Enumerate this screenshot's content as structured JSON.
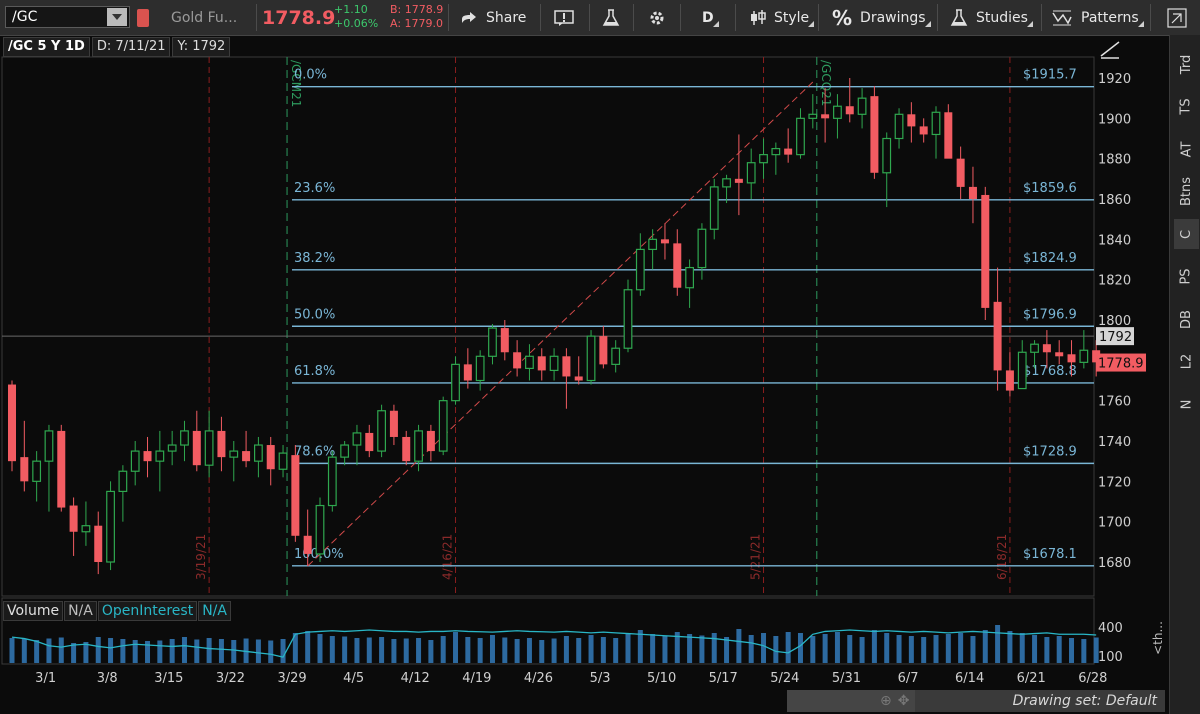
{
  "toolbar": {
    "symbol": "/GC",
    "description": "Gold Fu...",
    "last_price": "1778.9",
    "change": "+1.10",
    "change_pct": "+0.06%",
    "bid": "B: 1778.9",
    "ask": "A: 1779.0",
    "share_label": "Share",
    "aggregation_label": "D",
    "style_label": "Style",
    "drawings_label": "Drawings",
    "studies_label": "Studies",
    "patterns_label": "Patterns"
  },
  "infobar": {
    "symbol_period": "/GC 5 Y 1D",
    "date": "D: 7/11/21",
    "y_value": "Y: 1792"
  },
  "sidebar": {
    "tabs": [
      "Trd",
      "TS",
      "AT",
      "Btns",
      "C",
      "PS",
      "DB",
      "L2",
      "N"
    ]
  },
  "volume_panel": {
    "label_volume": "Volume",
    "label_volume_value": "N/A",
    "label_oi": "OpenInterest",
    "label_oi_value": "N/A",
    "axis_ticks": [
      400,
      100
    ],
    "collapse_label": "<th..."
  },
  "status": {
    "drawing_set": "Drawing set: Default"
  },
  "colors": {
    "up": "#2fa84f",
    "down": "#f25c62",
    "fib": "#7ab6d6",
    "grid": "#8b1e1e",
    "expiry": "#2d9a5e",
    "oi": "#29b6c6",
    "volume": "#2d6aa0"
  },
  "chart_data": {
    "type": "candlestick",
    "y_axis": {
      "ticks": [
        1680,
        1700,
        1720,
        1740,
        1760,
        1780,
        1800,
        1820,
        1840,
        1860,
        1880,
        1900,
        1920
      ],
      "range": [
        1668,
        1926
      ]
    },
    "x_axis": {
      "tick_labels": [
        "3/1",
        "3/8",
        "3/15",
        "3/22",
        "3/29",
        "4/5",
        "4/12",
        "4/19",
        "4/26",
        "5/3",
        "5/10",
        "5/17",
        "5/24",
        "5/31",
        "6/7",
        "6/14",
        "6/21",
        "6/28"
      ],
      "tick_index": [
        2,
        7,
        12,
        17,
        22,
        27,
        32,
        37,
        42,
        47,
        52,
        57,
        62,
        67,
        72,
        77,
        82,
        87
      ]
    },
    "candles": [
      {
        "o": 1768,
        "h": 1770,
        "l": 1725,
        "c": 1730
      },
      {
        "o": 1732,
        "h": 1750,
        "l": 1715,
        "c": 1720
      },
      {
        "o": 1720,
        "h": 1735,
        "l": 1710,
        "c": 1730
      },
      {
        "o": 1730,
        "h": 1748,
        "l": 1705,
        "c": 1745
      },
      {
        "o": 1745,
        "h": 1748,
        "l": 1705,
        "c": 1707
      },
      {
        "o": 1708,
        "h": 1712,
        "l": 1683,
        "c": 1695
      },
      {
        "o": 1695,
        "h": 1710,
        "l": 1688,
        "c": 1698
      },
      {
        "o": 1698,
        "h": 1705,
        "l": 1674,
        "c": 1680
      },
      {
        "o": 1680,
        "h": 1720,
        "l": 1676,
        "c": 1715
      },
      {
        "o": 1715,
        "h": 1728,
        "l": 1700,
        "c": 1725
      },
      {
        "o": 1725,
        "h": 1740,
        "l": 1718,
        "c": 1735
      },
      {
        "o": 1735,
        "h": 1742,
        "l": 1722,
        "c": 1730
      },
      {
        "o": 1730,
        "h": 1745,
        "l": 1715,
        "c": 1735
      },
      {
        "o": 1735,
        "h": 1745,
        "l": 1728,
        "c": 1738
      },
      {
        "o": 1738,
        "h": 1750,
        "l": 1730,
        "c": 1745
      },
      {
        "o": 1745,
        "h": 1755,
        "l": 1725,
        "c": 1728
      },
      {
        "o": 1728,
        "h": 1755,
        "l": 1722,
        "c": 1745
      },
      {
        "o": 1745,
        "h": 1752,
        "l": 1725,
        "c": 1732
      },
      {
        "o": 1732,
        "h": 1740,
        "l": 1720,
        "c": 1735
      },
      {
        "o": 1735,
        "h": 1745,
        "l": 1727,
        "c": 1730
      },
      {
        "o": 1730,
        "h": 1742,
        "l": 1722,
        "c": 1738
      },
      {
        "o": 1738,
        "h": 1742,
        "l": 1718,
        "c": 1726
      },
      {
        "o": 1726,
        "h": 1738,
        "l": 1722,
        "c": 1734
      },
      {
        "o": 1733,
        "h": 1738,
        "l": 1690,
        "c": 1693
      },
      {
        "o": 1693,
        "h": 1706,
        "l": 1678,
        "c": 1684
      },
      {
        "o": 1684,
        "h": 1712,
        "l": 1680,
        "c": 1708
      },
      {
        "o": 1708,
        "h": 1735,
        "l": 1705,
        "c": 1732
      },
      {
        "o": 1732,
        "h": 1740,
        "l": 1728,
        "c": 1738
      },
      {
        "o": 1738,
        "h": 1748,
        "l": 1728,
        "c": 1744
      },
      {
        "o": 1744,
        "h": 1748,
        "l": 1732,
        "c": 1735
      },
      {
        "o": 1735,
        "h": 1758,
        "l": 1732,
        "c": 1755
      },
      {
        "o": 1755,
        "h": 1758,
        "l": 1738,
        "c": 1742
      },
      {
        "o": 1742,
        "h": 1745,
        "l": 1728,
        "c": 1730
      },
      {
        "o": 1730,
        "h": 1748,
        "l": 1725,
        "c": 1745
      },
      {
        "o": 1745,
        "h": 1748,
        "l": 1730,
        "c": 1735
      },
      {
        "o": 1735,
        "h": 1762,
        "l": 1733,
        "c": 1760
      },
      {
        "o": 1760,
        "h": 1782,
        "l": 1758,
        "c": 1778
      },
      {
        "o": 1778,
        "h": 1786,
        "l": 1766,
        "c": 1770
      },
      {
        "o": 1770,
        "h": 1785,
        "l": 1765,
        "c": 1782
      },
      {
        "o": 1782,
        "h": 1798,
        "l": 1778,
        "c": 1796
      },
      {
        "o": 1796,
        "h": 1800,
        "l": 1780,
        "c": 1784
      },
      {
        "o": 1784,
        "h": 1790,
        "l": 1772,
        "c": 1776
      },
      {
        "o": 1776,
        "h": 1788,
        "l": 1770,
        "c": 1782
      },
      {
        "o": 1782,
        "h": 1786,
        "l": 1770,
        "c": 1775
      },
      {
        "o": 1775,
        "h": 1786,
        "l": 1770,
        "c": 1782
      },
      {
        "o": 1782,
        "h": 1786,
        "l": 1756,
        "c": 1772
      },
      {
        "o": 1772,
        "h": 1782,
        "l": 1768,
        "c": 1770
      },
      {
        "o": 1770,
        "h": 1795,
        "l": 1768,
        "c": 1792
      },
      {
        "o": 1792,
        "h": 1797,
        "l": 1776,
        "c": 1778
      },
      {
        "o": 1778,
        "h": 1790,
        "l": 1774,
        "c": 1786
      },
      {
        "o": 1786,
        "h": 1820,
        "l": 1784,
        "c": 1815
      },
      {
        "o": 1815,
        "h": 1843,
        "l": 1812,
        "c": 1835
      },
      {
        "o": 1835,
        "h": 1845,
        "l": 1825,
        "c": 1840
      },
      {
        "o": 1840,
        "h": 1848,
        "l": 1830,
        "c": 1838
      },
      {
        "o": 1838,
        "h": 1845,
        "l": 1812,
        "c": 1816
      },
      {
        "o": 1816,
        "h": 1830,
        "l": 1806,
        "c": 1826
      },
      {
        "o": 1826,
        "h": 1848,
        "l": 1820,
        "c": 1845
      },
      {
        "o": 1845,
        "h": 1870,
        "l": 1840,
        "c": 1866
      },
      {
        "o": 1866,
        "h": 1872,
        "l": 1858,
        "c": 1870
      },
      {
        "o": 1870,
        "h": 1892,
        "l": 1852,
        "c": 1868
      },
      {
        "o": 1868,
        "h": 1885,
        "l": 1860,
        "c": 1878
      },
      {
        "o": 1878,
        "h": 1890,
        "l": 1870,
        "c": 1882
      },
      {
        "o": 1882,
        "h": 1888,
        "l": 1872,
        "c": 1885
      },
      {
        "o": 1885,
        "h": 1895,
        "l": 1878,
        "c": 1882
      },
      {
        "o": 1882,
        "h": 1905,
        "l": 1880,
        "c": 1900
      },
      {
        "o": 1900,
        "h": 1912,
        "l": 1895,
        "c": 1902
      },
      {
        "o": 1902,
        "h": 1915,
        "l": 1888,
        "c": 1900
      },
      {
        "o": 1900,
        "h": 1912,
        "l": 1890,
        "c": 1906
      },
      {
        "o": 1906,
        "h": 1920,
        "l": 1898,
        "c": 1902
      },
      {
        "o": 1902,
        "h": 1915,
        "l": 1895,
        "c": 1910
      },
      {
        "o": 1911,
        "h": 1916,
        "l": 1870,
        "c": 1873
      },
      {
        "o": 1873,
        "h": 1893,
        "l": 1856,
        "c": 1890
      },
      {
        "o": 1890,
        "h": 1905,
        "l": 1885,
        "c": 1902
      },
      {
        "o": 1902,
        "h": 1908,
        "l": 1888,
        "c": 1896
      },
      {
        "o": 1896,
        "h": 1900,
        "l": 1888,
        "c": 1892
      },
      {
        "o": 1892,
        "h": 1906,
        "l": 1880,
        "c": 1903
      },
      {
        "o": 1903,
        "h": 1907,
        "l": 1882,
        "c": 1880
      },
      {
        "o": 1880,
        "h": 1886,
        "l": 1860,
        "c": 1866
      },
      {
        "o": 1866,
        "h": 1876,
        "l": 1848,
        "c": 1860
      },
      {
        "o": 1862,
        "h": 1866,
        "l": 1800,
        "c": 1806
      },
      {
        "o": 1809,
        "h": 1826,
        "l": 1765,
        "c": 1775
      },
      {
        "o": 1775,
        "h": 1784,
        "l": 1762,
        "c": 1765
      },
      {
        "o": 1766,
        "h": 1790,
        "l": 1766,
        "c": 1784
      },
      {
        "o": 1784,
        "h": 1790,
        "l": 1776,
        "c": 1788
      },
      {
        "o": 1788,
        "h": 1795,
        "l": 1776,
        "c": 1784
      },
      {
        "o": 1784,
        "h": 1790,
        "l": 1778,
        "c": 1782
      },
      {
        "o": 1783,
        "h": 1790,
        "l": 1772,
        "c": 1779
      },
      {
        "o": 1779,
        "h": 1795,
        "l": 1776,
        "c": 1785
      },
      {
        "o": 1785,
        "h": 1790,
        "l": 1772,
        "c": 1779
      }
    ],
    "fibonacci": [
      {
        "label": "0.0%",
        "price": 1915.7,
        "price_label": "$1915.7"
      },
      {
        "label": "23.6%",
        "price": 1859.6,
        "price_label": "$1859.6"
      },
      {
        "label": "38.2%",
        "price": 1824.9,
        "price_label": "$1824.9"
      },
      {
        "label": "50.0%",
        "price": 1796.9,
        "price_label": "$1796.9"
      },
      {
        "label": "61.8%",
        "price": 1768.8,
        "price_label": "$1768.8"
      },
      {
        "label": "78.6%",
        "price": 1728.9,
        "price_label": "$1728.9"
      },
      {
        "label": "100.0%",
        "price": 1678.1,
        "price_label": "$1678.1"
      }
    ],
    "trendline": {
      "from": {
        "index": 24,
        "price": 1678
      },
      "to": {
        "index": 65,
        "price": 1918
      }
    },
    "expiry_markers": [
      {
        "label": "/GCM21",
        "index": 22
      },
      {
        "label": "/GCQ21",
        "index": 65
      }
    ],
    "date_markers": [
      {
        "label": "3/19/21",
        "index": 16
      },
      {
        "label": "4/16/21",
        "index": 36
      },
      {
        "label": "5/21/21",
        "index": 61
      },
      {
        "label": "6/18/21",
        "index": 81
      }
    ],
    "crosshair_price": 1792,
    "crosshair_label": "1792",
    "last_price": 1778.9,
    "last_price_label": "1778.9",
    "volume": [
      250,
      240,
      230,
      245,
      255,
      200,
      210,
      260,
      250,
      240,
      230,
      220,
      225,
      240,
      260,
      235,
      250,
      240,
      230,
      245,
      235,
      225,
      240,
      300,
      320,
      290,
      270,
      265,
      250,
      255,
      260,
      240,
      245,
      250,
      230,
      270,
      310,
      260,
      250,
      280,
      255,
      240,
      250,
      230,
      245,
      270,
      250,
      280,
      260,
      250,
      300,
      330,
      290,
      270,
      310,
      290,
      275,
      300,
      260,
      340,
      280,
      300,
      270,
      310,
      300,
      270,
      290,
      310,
      280,
      260,
      330,
      300,
      280,
      270,
      260,
      280,
      290,
      300,
      270,
      330,
      380,
      320,
      300,
      280,
      260,
      270,
      250,
      240,
      255
    ],
    "open_interest": [
      360,
      350,
      330,
      300,
      290,
      305,
      310,
      295,
      285,
      300,
      310,
      305,
      300,
      295,
      300,
      290,
      280,
      275,
      270,
      260,
      250,
      240,
      220,
      380,
      395,
      400,
      405,
      400,
      405,
      410,
      405,
      400,
      400,
      395,
      400,
      400,
      405,
      400,
      398,
      395,
      400,
      405,
      400,
      398,
      395,
      400,
      395,
      390,
      395,
      390,
      385,
      380,
      375,
      370,
      365,
      360,
      355,
      350,
      340,
      330,
      320,
      300,
      260,
      250,
      300,
      380,
      400,
      405,
      410,
      405,
      400,
      405,
      400,
      395,
      400,
      395,
      390,
      395,
      400,
      395,
      390,
      385,
      380,
      385,
      390,
      380,
      380,
      380,
      375
    ]
  }
}
